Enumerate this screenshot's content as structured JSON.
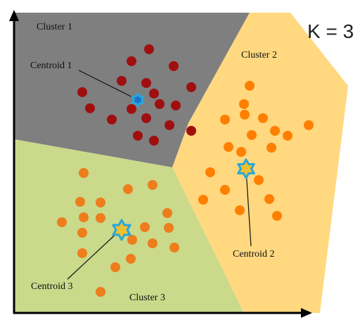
{
  "title": "K = 3",
  "colors": {
    "cluster1_region": "#7f7f7f",
    "cluster2_region": "#ffd880",
    "cluster3_region": "#cad98a",
    "cluster1_point": "#a00f0f",
    "cluster2_point": "#ff7f00",
    "cluster3_point": "#ee7d1c",
    "centroid_fill": "#f0c030",
    "centroid_stroke": "#2aa7d8",
    "axis": "#000000"
  },
  "clusters": [
    {
      "label": "Cluster 1",
      "centroid_label": "Centroid 1"
    },
    {
      "label": "Cluster 2",
      "centroid_label": "Centroid 2"
    },
    {
      "label": "Cluster 3",
      "centroid_label": "Centroid 3"
    }
  ]
}
